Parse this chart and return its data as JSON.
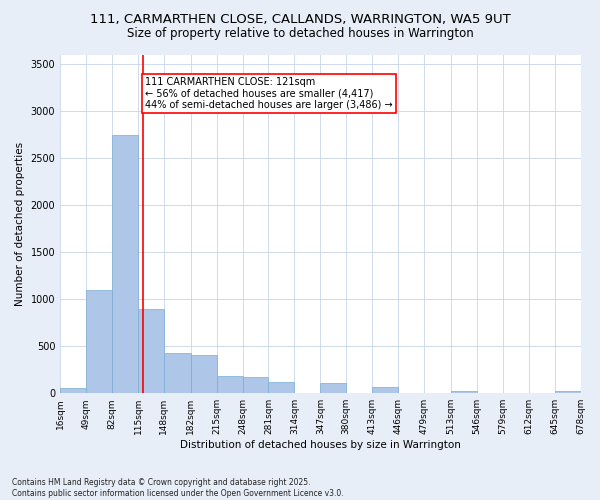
{
  "title1": "111, CARMARTHEN CLOSE, CALLANDS, WARRINGTON, WA5 9UT",
  "title2": "Size of property relative to detached houses in Warrington",
  "xlabel": "Distribution of detached houses by size in Warrington",
  "ylabel": "Number of detached properties",
  "bin_edges": [
    16,
    49,
    82,
    115,
    148,
    182,
    215,
    248,
    281,
    314,
    347,
    380,
    413,
    446,
    479,
    513,
    546,
    579,
    612,
    645,
    678
  ],
  "bar_heights": [
    60,
    1100,
    2750,
    900,
    430,
    410,
    185,
    175,
    120,
    0,
    105,
    0,
    70,
    0,
    0,
    20,
    0,
    0,
    0,
    20
  ],
  "bar_color": "#aec6e8",
  "bar_edge_color": "#7aadd4",
  "vline_x": 121,
  "vline_color": "red",
  "annotation_text": "111 CARMARTHEN CLOSE: 121sqm\n← 56% of detached houses are smaller (4,417)\n44% of semi-detached houses are larger (3,486) →",
  "annotation_box_color": "white",
  "annotation_box_edge": "red",
  "ylim": [
    0,
    3600
  ],
  "yticks": [
    0,
    500,
    1000,
    1500,
    2000,
    2500,
    3000,
    3500
  ],
  "background_color": "#e8eef8",
  "plot_bg_color": "white",
  "grid_color": "#c8d4e8",
  "footer1": "Contains HM Land Registry data © Crown copyright and database right 2025.",
  "footer2": "Contains public sector information licensed under the Open Government Licence v3.0.",
  "title1_fontsize": 9.5,
  "title2_fontsize": 8.5,
  "tick_label_fontsize": 6.5,
  "ylabel_fontsize": 7.5,
  "xlabel_fontsize": 7.5,
  "annotation_fontsize": 7,
  "footer_fontsize": 5.5
}
